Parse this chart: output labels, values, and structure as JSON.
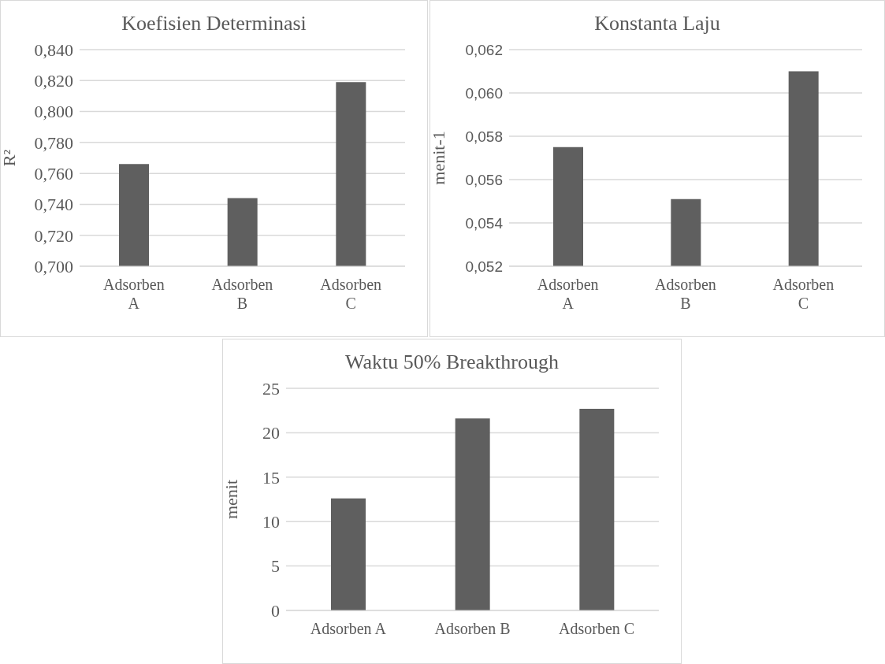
{
  "chart_data": [
    {
      "type": "bar",
      "title": "Koefisien Determinasi",
      "ylabel": "R²",
      "categories": [
        "Adsorben A",
        "Adsorben B",
        "Adsorben C"
      ],
      "values": [
        0.766,
        0.744,
        0.819
      ],
      "color": "#5f5f5f",
      "ylim": [
        0.7,
        0.84
      ],
      "yticks": [
        {
          "value": 0.7,
          "label": "0,700"
        },
        {
          "value": 0.72,
          "label": "0,720"
        },
        {
          "value": 0.74,
          "label": "0,740"
        },
        {
          "value": 0.76,
          "label": "0,760"
        },
        {
          "value": 0.78,
          "label": "0,780"
        },
        {
          "value": 0.8,
          "label": "0,800"
        },
        {
          "value": 0.82,
          "label": "0,820"
        },
        {
          "value": 0.84,
          "label": "0,840"
        }
      ],
      "grid": "y"
    },
    {
      "type": "bar",
      "title": "Konstanta Laju",
      "ylabel": "menit-1",
      "categories": [
        "Adsorben A",
        "Adsorben B",
        "Adsorben C"
      ],
      "values": [
        0.0575,
        0.0551,
        0.061
      ],
      "color": "#5f5f5f",
      "ylim": [
        0.052,
        0.062
      ],
      "yticks": [
        {
          "value": 0.052,
          "label": "0,052"
        },
        {
          "value": 0.054,
          "label": "0,054"
        },
        {
          "value": 0.056,
          "label": "0,056"
        },
        {
          "value": 0.058,
          "label": "0,058"
        },
        {
          "value": 0.06,
          "label": "0,060"
        },
        {
          "value": 0.062,
          "label": "0,062"
        }
      ],
      "grid": "y"
    },
    {
      "type": "bar",
      "title": "Waktu 50% Breakthrough",
      "ylabel": "menit",
      "categories": [
        "Adsorben A",
        "Adsorben B",
        "Adsorben C"
      ],
      "values": [
        12.6,
        21.6,
        22.7
      ],
      "color": "#5f5f5f",
      "ylim": [
        0,
        25
      ],
      "yticks": [
        0,
        5,
        10,
        15,
        20,
        25
      ],
      "grid": "y"
    }
  ]
}
